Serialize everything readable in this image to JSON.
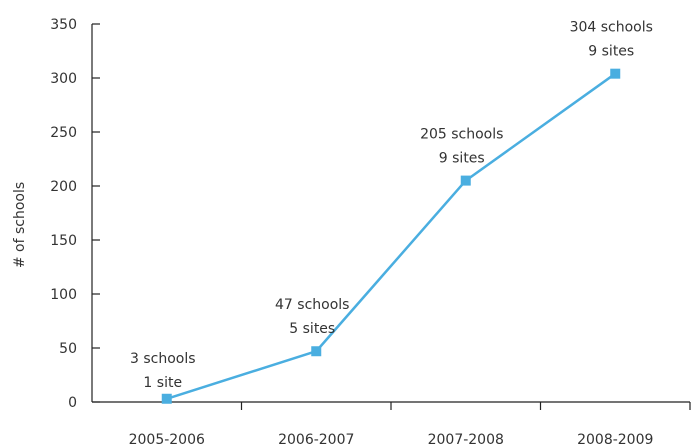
{
  "chart_data": {
    "type": "line",
    "title": "",
    "xlabel": "",
    "ylabel": "# of schools",
    "categories": [
      "2005-2006",
      "2006-2007",
      "2007-2008",
      "2008-2009"
    ],
    "series": [
      {
        "values": [
          3,
          47,
          205,
          304
        ],
        "color": "#4aaee0"
      }
    ],
    "ylim": [
      0,
      350
    ],
    "yticks": [
      0,
      50,
      100,
      150,
      200,
      250,
      300,
      350
    ],
    "annotations": [
      [
        "3 schools",
        "1 site"
      ],
      [
        "47 schools",
        "5 sites"
      ],
      [
        "205 schools",
        "9 sites"
      ],
      [
        "304 schools",
        "9 sites"
      ]
    ],
    "grid": false,
    "legend": "none",
    "marker": "square"
  }
}
